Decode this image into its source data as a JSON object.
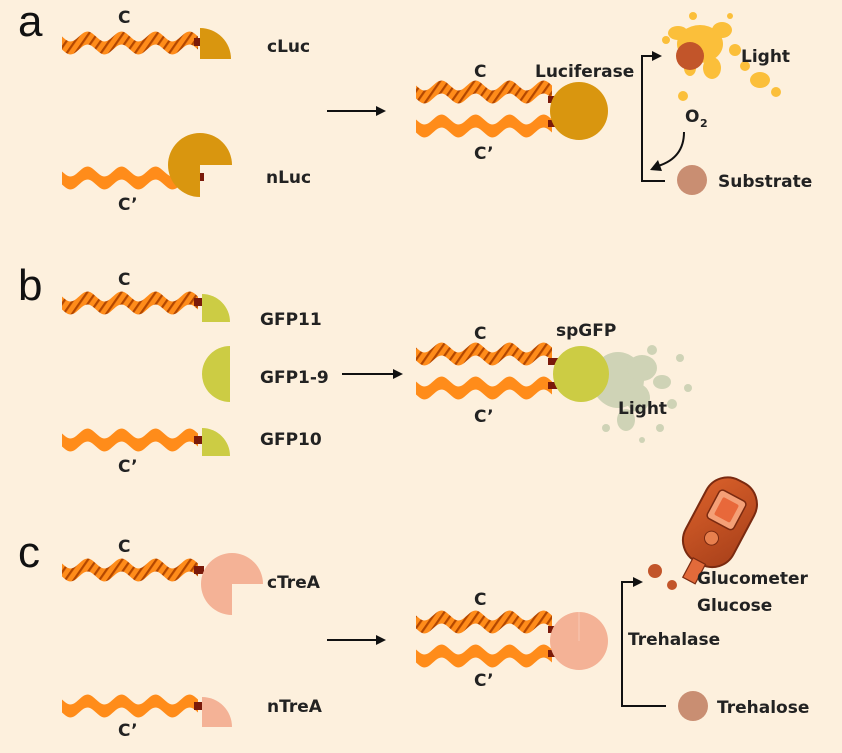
{
  "colors": {
    "background": "#fdf0dd",
    "strand": "#ff8c1a",
    "stripe": "#b34700",
    "linker": "#7a1a0a",
    "luciferase": "#d9960f",
    "gfp": "#cccc44",
    "gfp_glow": "#cfd3b6",
    "trea": "#f4b296",
    "light_splash": "#fbbf3a",
    "product_dot": "#c2552a",
    "substrate_dot": "#c98e72"
  },
  "panels": {
    "a": {
      "label": "a",
      "coil_top": "C",
      "coil_bottom": "C’",
      "frag_top": "cLuc",
      "frag_bottom": "nLuc",
      "complex_top": "C",
      "complex_bottom": "C’",
      "enzyme": "Luciferase",
      "output": "Light",
      "cofactor": "O",
      "cofactor_sub": "2",
      "substrate": "Substrate"
    },
    "b": {
      "label": "b",
      "coil_top": "C",
      "coil_bottom": "C’",
      "frag_top": "GFP11",
      "frag_middle": "GFP1-9",
      "frag_bottom": "GFP10",
      "complex_top": "C",
      "complex_bottom": "C’",
      "enzyme": "spGFP",
      "output": "Light"
    },
    "c": {
      "label": "c",
      "coil_top": "C",
      "coil_bottom": "C’",
      "frag_top": "cTreA",
      "frag_bottom": "nTreA",
      "complex_top": "C",
      "complex_bottom": "C’",
      "enzyme": "Trehalase",
      "output_line1": "Glucometer",
      "output_line2": "Glucose",
      "substrate": "Trehalose"
    }
  }
}
